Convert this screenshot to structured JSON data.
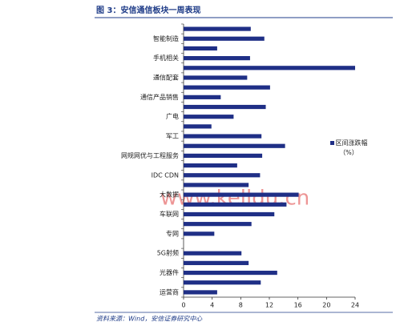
{
  "chart_data": {
    "type": "hbar",
    "title": "图 3：安信通信板块一周表现",
    "source": "资料来源：Wind，安信证券研究中心",
    "watermark": "www.kelldu.cn",
    "categories": [
      null,
      "智能制造",
      null,
      "手机相关",
      null,
      "通信配套",
      null,
      "通信产品销售",
      null,
      "广电",
      null,
      "军工",
      null,
      "网规网优与工程服务",
      null,
      "IDC CDN",
      null,
      "大数据",
      null,
      "车联网",
      null,
      "专网",
      null,
      "5G射频",
      null,
      "光器件",
      null,
      "运营商"
    ],
    "series": [
      {
        "name": "区间涨跌幅（%）",
        "color": "#1f2f86",
        "values": [
          9.4,
          11.3,
          4.7,
          9.3,
          24,
          8.9,
          12.1,
          5.2,
          11.5,
          7.0,
          3.9,
          10.9,
          14.2,
          11,
          7.5,
          10.7,
          9.1,
          16.1,
          14.4,
          12.7,
          9.5,
          4.3,
          0,
          8.1,
          9.1,
          13.1,
          10.8,
          4.7
        ]
      }
    ],
    "xlim": [
      0,
      24
    ],
    "xticks": [
      0,
      4,
      8,
      12,
      16,
      20,
      24
    ],
    "legend": "right"
  }
}
